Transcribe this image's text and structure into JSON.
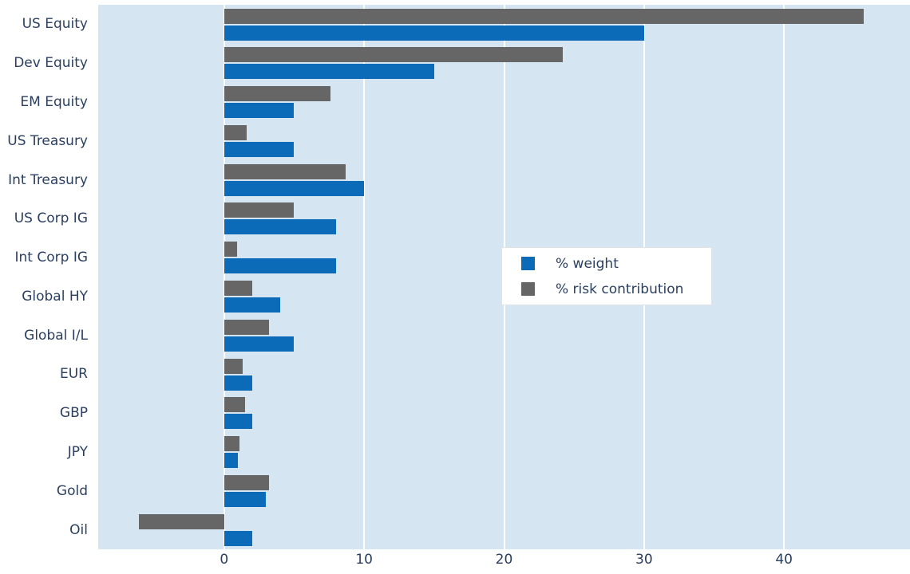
{
  "chart_data": {
    "type": "bar",
    "orientation": "horizontal",
    "title": "",
    "xlabel": "",
    "ylabel": "",
    "categories": [
      "US Equity",
      "Dev Equity",
      "EM Equity",
      "US Treasury",
      "Int Treasury",
      "US Corp IG",
      "Int Corp IG",
      "Global HY",
      "Global I/L",
      "EUR",
      "GBP",
      "JPY",
      "Gold",
      "Oil"
    ],
    "series": [
      {
        "name": "% weight",
        "color": "#0b6bb8",
        "values": [
          30,
          15,
          5,
          5,
          10,
          8,
          8,
          4,
          5,
          2,
          2,
          1,
          3,
          2
        ]
      },
      {
        "name": "% risk contribution",
        "color": "#666666",
        "values": [
          45.7,
          24.2,
          7.6,
          1.6,
          8.7,
          5.0,
          0.9,
          2.0,
          3.2,
          1.3,
          1.5,
          1.1,
          3.2,
          -6.1
        ]
      }
    ],
    "x_ticks": [
      "0",
      "10",
      "20",
      "30",
      "40"
    ],
    "x_tick_values": [
      0,
      10,
      20,
      30,
      40
    ],
    "xlim": [
      -9,
      49
    ],
    "grid": "vertical white gridlines",
    "legend_position": "center-right inside plot",
    "colors": {
      "plot_background": "#d5e5f1",
      "gridline": "#ffffff",
      "text": "#2a3f5f",
      "page_background": "#ffffff"
    }
  }
}
